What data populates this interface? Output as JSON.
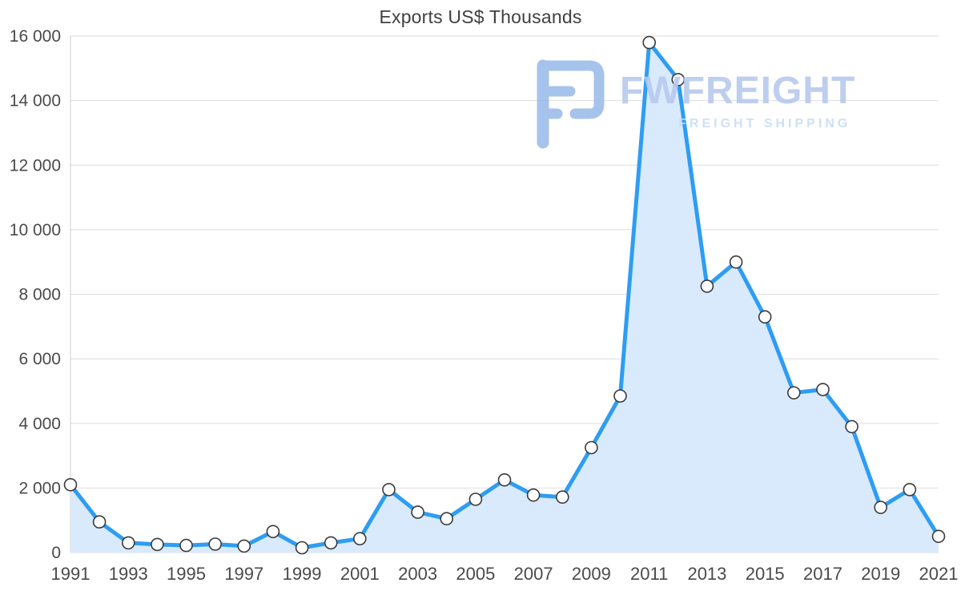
{
  "watermark": {
    "brand": "FWFREIGHT",
    "tagline": "FREIGHT SHIPPING"
  },
  "chart_data": {
    "type": "area",
    "title": "Exports US$ Thousands",
    "xlabel": "",
    "ylabel": "",
    "categories": [
      1991,
      1992,
      1993,
      1994,
      1995,
      1996,
      1997,
      1998,
      1999,
      2000,
      2001,
      2002,
      2003,
      2004,
      2005,
      2006,
      2007,
      2008,
      2009,
      2010,
      2011,
      2012,
      2013,
      2014,
      2015,
      2016,
      2017,
      2018,
      2019,
      2020,
      2021
    ],
    "values": [
      2100,
      950,
      300,
      250,
      220,
      260,
      200,
      650,
      150,
      300,
      430,
      1950,
      1250,
      1050,
      1650,
      2250,
      1780,
      1720,
      3250,
      4850,
      15800,
      14650,
      8250,
      9000,
      7300,
      4950,
      5050,
      3900,
      1400,
      1950,
      500
    ],
    "ylim": [
      0,
      16000
    ],
    "ytick_step": 2000,
    "ytick_labels": [
      "0",
      "2 000",
      "4 000",
      "6 000",
      "8 000",
      "10 000",
      "12 000",
      "14 000",
      "16 000"
    ],
    "xtick_labels": [
      "1991",
      "1993",
      "1995",
      "1997",
      "1999",
      "2001",
      "2003",
      "2005",
      "2007",
      "2009",
      "2011",
      "2013",
      "2015",
      "2017",
      "2019",
      "2021"
    ],
    "xtick_step": 2,
    "grid": "horizontal",
    "legend": "none",
    "marker": "circle",
    "colors": {
      "line": "#2e9df3",
      "fill": "#d9eafc",
      "marker_fill": "#ffffff",
      "marker_stroke": "#3a3a3a",
      "grid": "#dedede",
      "axis_line": "#cccccc",
      "axis_text": "#4a4a4a",
      "title_text": "#404040",
      "watermark_text": "#b7c9ee",
      "watermark_tagline": "#c9ddf6",
      "watermark_logo": "#9dbdea"
    }
  }
}
